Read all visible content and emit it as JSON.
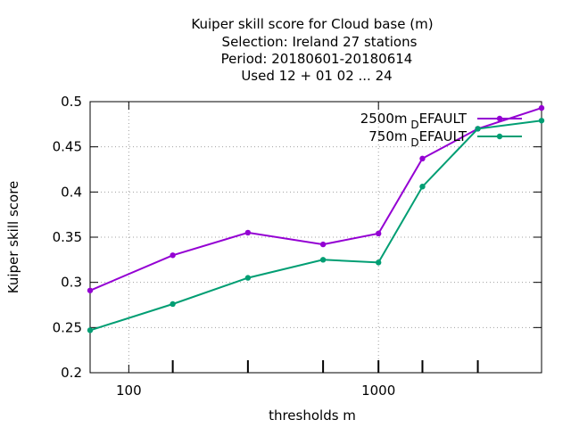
{
  "chart_data": {
    "type": "line",
    "title_lines": [
      "Kuiper skill score  for Cloud base (m)",
      "Selection: Ireland      27 stations",
      "Period: 20180601-20180614",
      "Used  12 + 01 02 ... 24"
    ],
    "xlabel": "thresholds m",
    "ylabel": "Kuiper skill score",
    "x_scale": "log",
    "xlim": [
      70,
      4500
    ],
    "ylim": [
      0.2,
      0.5
    ],
    "x_tick_labels": [
      "100",
      "1000"
    ],
    "y_tick_labels": [
      "0.2",
      "0.25",
      "0.3",
      "0.35",
      "0.4",
      "0.45",
      "0.5"
    ],
    "grid": true,
    "legend_position": "top-right",
    "x": [
      70,
      150,
      300,
      600,
      1000,
      1500,
      2500,
      4500
    ],
    "series": [
      {
        "name": "2500m",
        "name_sub": "D",
        "name_rest": "EFAULT",
        "color": "#9400d3",
        "values": [
          0.291,
          0.33,
          0.355,
          0.342,
          0.354,
          0.437,
          0.47,
          0.493
        ]
      },
      {
        "name": "750m",
        "name_sub": "D",
        "name_rest": "EFAULT",
        "color": "#009e73",
        "values": [
          0.247,
          0.276,
          0.305,
          0.325,
          0.322,
          0.406,
          0.47,
          0.479
        ]
      }
    ]
  }
}
